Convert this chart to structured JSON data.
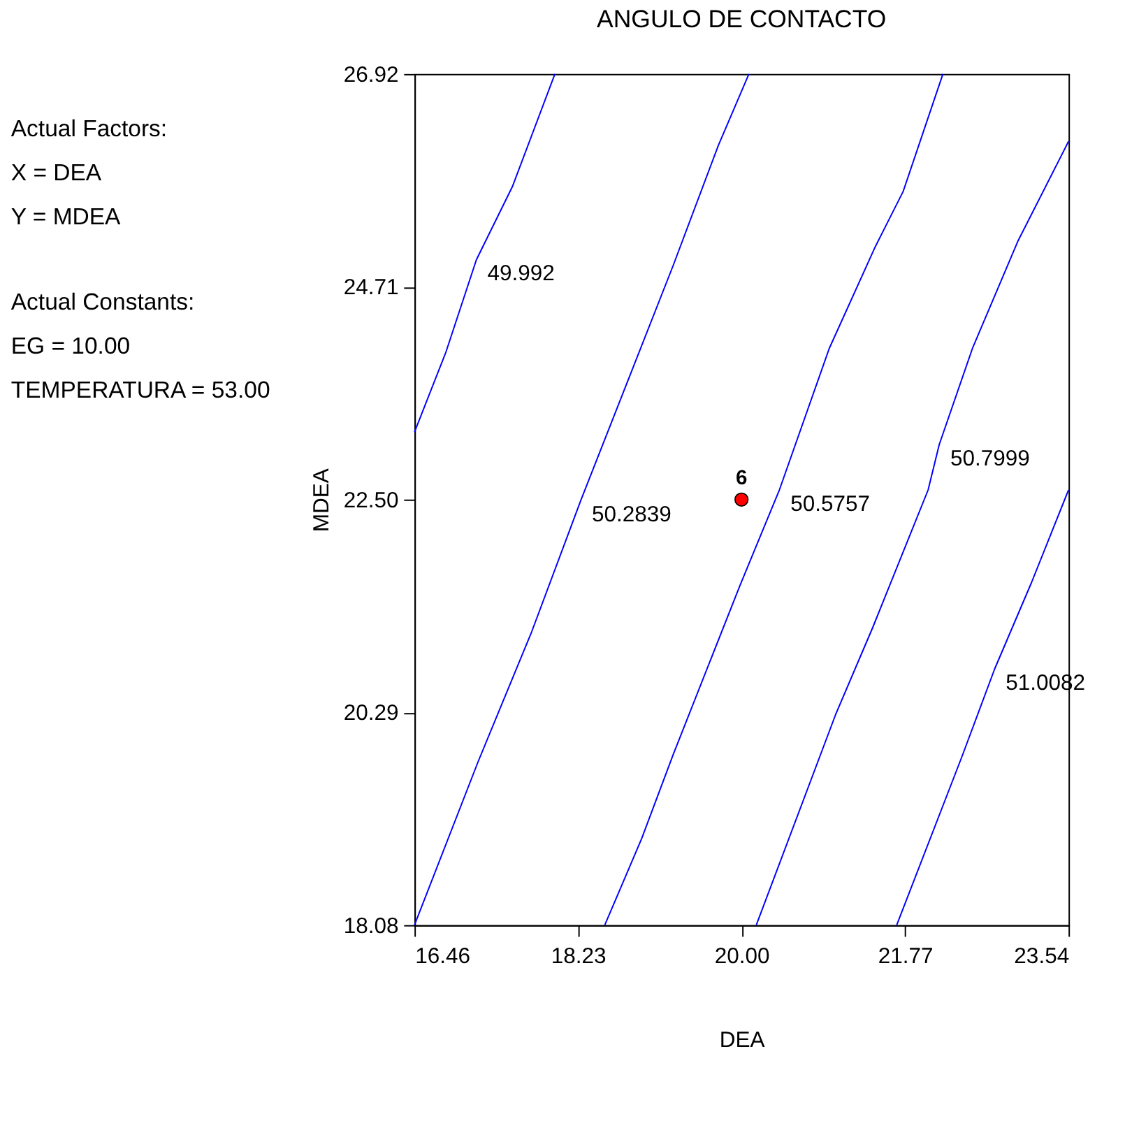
{
  "chart_data": {
    "type": "line",
    "title": "ANGULO DE CONTACTO",
    "xlabel": "DEA",
    "ylabel": "MDEA",
    "xlim": [
      16.46,
      23.54
    ],
    "ylim": [
      18.08,
      26.92
    ],
    "xticks": [
      16.46,
      18.23,
      {
        "value": 20,
        "label": "20.00"
      },
      21.77,
      23.54
    ],
    "yticks": [
      18.08,
      20.29,
      {
        "value": 22.5,
        "label": "22.50"
      },
      24.71,
      26.92
    ],
    "grid": false,
    "annotations": [
      "Actual Factors:",
      "X = DEA",
      "Y = MDEA",
      "Actual Constants:",
      "EG = 10.00",
      "TEMPERATURA = 53.00"
    ],
    "series": [
      {
        "name": "49.992",
        "color": "#0000ff",
        "x": [
          16.46,
          16.8,
          17.13,
          17.52,
          17.98
        ],
        "values": [
          23.2,
          24.03,
          24.99,
          25.75,
          26.92
        ]
      },
      {
        "name": "50.2839",
        "color": "#0000ff",
        "x": [
          16.46,
          17.15,
          17.73,
          18.26,
          19.26,
          19.75,
          20.08
        ],
        "values": [
          18.08,
          19.78,
          21.13,
          22.49,
          24.93,
          26.18,
          26.92
        ]
      },
      {
        "name": "50.5757",
        "color": "#0000ff",
        "x": [
          18.52,
          18.92,
          19.26,
          19.98,
          20.41,
          20.95,
          21.45,
          21.75,
          22.18
        ],
        "values": [
          18.08,
          18.98,
          19.85,
          21.6,
          22.6,
          24.07,
          25.13,
          25.7,
          26.92
        ]
      },
      {
        "name": "50.7999",
        "color": "#0000ff",
        "x": [
          20.16,
          21.02,
          21.42,
          22.02,
          22.14,
          22.5,
          22.99,
          23.54
        ],
        "values": [
          18.08,
          20.27,
          21.17,
          22.6,
          23.07,
          24.07,
          25.18,
          26.22
        ]
      },
      {
        "name": "51.0082",
        "color": "#0000ff",
        "x": [
          21.68,
          22.39,
          22.74,
          23.14,
          23.54
        ],
        "values": [
          18.08,
          19.84,
          20.74,
          21.64,
          22.6
        ]
      },
      {
        "name": "6",
        "type": "scatter",
        "color": "#ff0000",
        "x": [
          20
        ],
        "values": [
          22.5
        ]
      }
    ]
  }
}
